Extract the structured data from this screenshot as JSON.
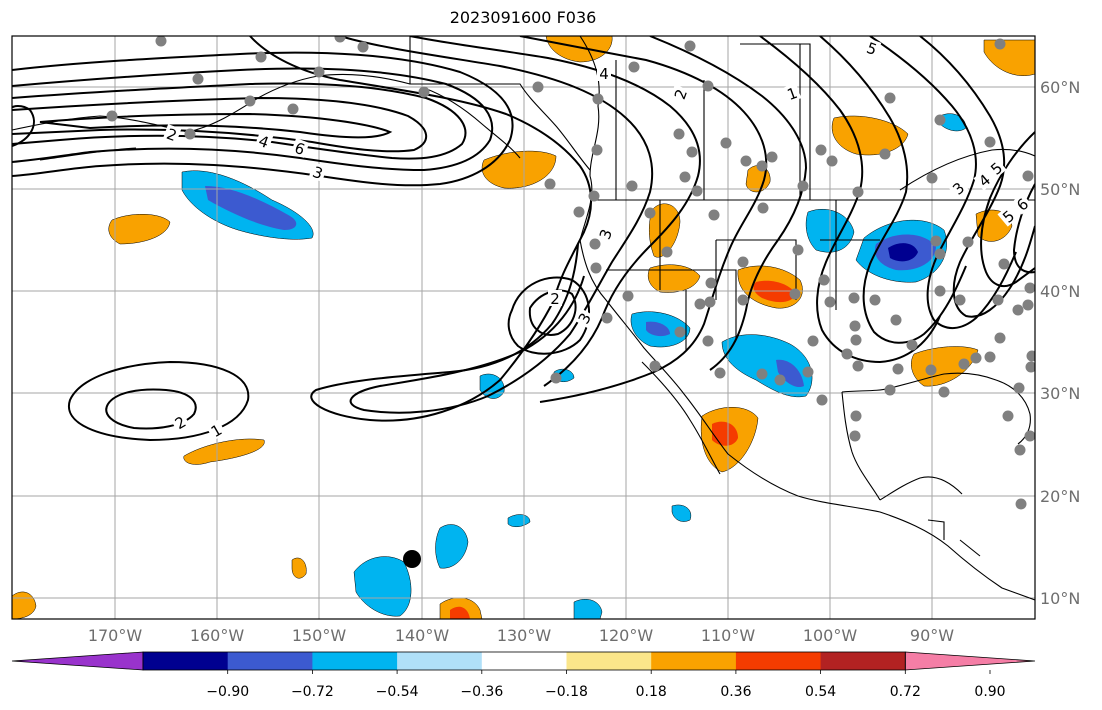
{
  "title": "2023091600 F036",
  "lon_labels": [
    "170°W",
    "160°W",
    "150°W",
    "140°W",
    "130°W",
    "120°W",
    "110°W",
    "100°W",
    "90°W"
  ],
  "lat_labels": [
    "60°N",
    "50°N",
    "40°N",
    "30°N",
    "20°N",
    "10°N"
  ],
  "colorbar": {
    "ticks": [
      "−0.90",
      "−0.72",
      "−0.54",
      "−0.36",
      "−0.18",
      "0.18",
      "0.36",
      "0.54",
      "0.72",
      "0.90"
    ],
    "colors": [
      "#9933cc",
      "#000090",
      "#3c5ad0",
      "#00b4f0",
      "#b0e0f8",
      "#ffffff",
      "#fbe68a",
      "#f9a200",
      "#f53c00",
      "#b22222",
      "#f57ea6"
    ]
  },
  "contour_labels": [
    "1",
    "2",
    "3",
    "4",
    "5",
    "6"
  ],
  "station_color": "#808080",
  "marker_color": "#000000"
}
